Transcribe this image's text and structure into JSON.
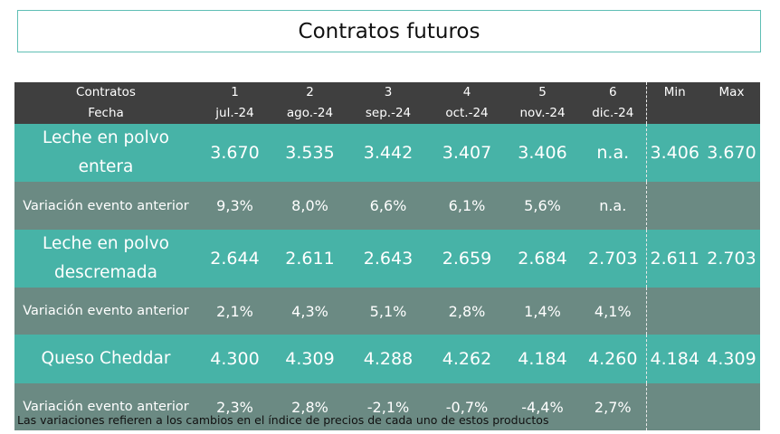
{
  "title": "Contratos futuros",
  "header": {
    "label_line1": "Contratos",
    "label_line2": "Fecha",
    "columns": [
      {
        "num": "1",
        "date": "jul.-24"
      },
      {
        "num": "2",
        "date": "ago.-24"
      },
      {
        "num": "3",
        "date": "sep.-24"
      },
      {
        "num": "4",
        "date": "oct.-24"
      },
      {
        "num": "5",
        "date": "nov.-24"
      },
      {
        "num": "6",
        "date": "dic.-24"
      }
    ],
    "min_label": "Min",
    "max_label": "Max"
  },
  "rows": [
    {
      "type": "product",
      "name_line1": "Leche en polvo",
      "name_line2": "entera",
      "values": [
        "3.670",
        "3.535",
        "3.442",
        "3.407",
        "3.406",
        "n.a."
      ],
      "min": "3.406",
      "max": "3.670"
    },
    {
      "type": "variation",
      "name": "Variación evento anterior",
      "values": [
        "9,3%",
        "8,0%",
        "6,6%",
        "6,1%",
        "5,6%",
        "n.a."
      ],
      "min": "",
      "max": ""
    },
    {
      "type": "product",
      "name_line1": "Leche en polvo",
      "name_line2": "descremada",
      "values": [
        "2.644",
        "2.611",
        "2.643",
        "2.659",
        "2.684",
        "2.703"
      ],
      "min": "2.611",
      "max": "2.703"
    },
    {
      "type": "variation",
      "name": "Variación evento anterior",
      "values": [
        "2,1%",
        "4,3%",
        "5,1%",
        "2,8%",
        "1,4%",
        "4,1%"
      ],
      "min": "",
      "max": ""
    },
    {
      "type": "product",
      "name_line1": "Queso Cheddar",
      "name_line2": "",
      "values": [
        "4.300",
        "4.309",
        "4.288",
        "4.262",
        "4.184",
        "4.260"
      ],
      "min": "4.184",
      "max": "4.309"
    },
    {
      "type": "variation",
      "name": "Variación evento anterior",
      "values": [
        "2,3%",
        "2,8%",
        "-2,1%",
        "-0,7%",
        "-4,4%",
        "2,7%"
      ],
      "min": "",
      "max": ""
    }
  ],
  "footnote": "Las variaciones refieren a los cambios en el índice de precios de cada uno de estos productos",
  "colors": {
    "header_bg": "#3f3f3f",
    "product_row_bg": "#47b3a7",
    "variation_row_bg": "#6b8a83",
    "title_border": "#5fbfb5"
  }
}
